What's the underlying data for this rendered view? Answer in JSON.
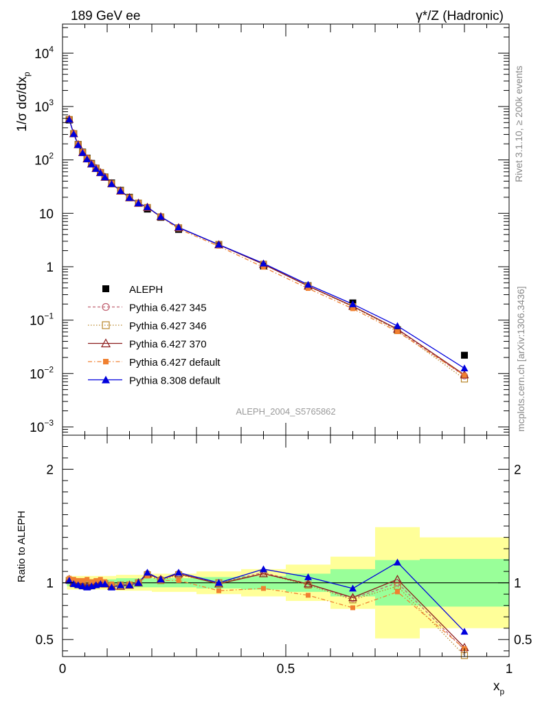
{
  "chart_data": {
    "type": "scatter",
    "title_left": "189 GeV ee",
    "title_right": "γ*/Z (Hadronic)",
    "xlabel": "x",
    "xlabel_sub": "p",
    "ylabel": "1/σ dσ/dx",
    "ylabel_sub": "p",
    "ratio_ylabel": "Ratio to ALEPH",
    "side_text_1": "Rivet 3.1.10, ≥ 200k events",
    "side_text_2": "mcplots.cern.ch [arXiv:1306.3436]",
    "watermark": "ALEPH_2004_S5765862",
    "xlim": [
      0,
      1
    ],
    "ylim": [
      0.0007,
      35000
    ],
    "ratio_ylim": [
      0.35,
      2.3
    ],
    "x_ticks": [
      {
        "v": 0,
        "label": "0"
      },
      {
        "v": 0.5,
        "label": "0.5"
      },
      {
        "v": 1,
        "label": "1"
      }
    ],
    "y_ticks": [
      {
        "v": 0.001,
        "base": "10",
        "exp": "−3"
      },
      {
        "v": 0.01,
        "base": "10",
        "exp": "−2"
      },
      {
        "v": 0.1,
        "base": "10",
        "exp": "−1"
      },
      {
        "v": 1,
        "base": "1",
        "exp": ""
      },
      {
        "v": 10,
        "base": "10",
        "exp": ""
      },
      {
        "v": 100,
        "base": "10",
        "exp": "2"
      },
      {
        "v": 1000,
        "base": "10",
        "exp": "3"
      },
      {
        "v": 10000,
        "base": "10",
        "exp": "4"
      }
    ],
    "ratio_ticks": [
      {
        "v": 0.5,
        "label": "0.5"
      },
      {
        "v": 1,
        "label": "1"
      },
      {
        "v": 2,
        "label": "2"
      }
    ],
    "x": [
      0.015,
      0.025,
      0.035,
      0.045,
      0.055,
      0.065,
      0.075,
      0.085,
      0.095,
      0.11,
      0.13,
      0.15,
      0.17,
      0.19,
      0.22,
      0.26,
      0.35,
      0.45,
      0.55,
      0.65,
      0.75,
      0.9
    ],
    "bin_edges": [
      0.01,
      0.02,
      0.03,
      0.04,
      0.05,
      0.06,
      0.07,
      0.08,
      0.09,
      0.1,
      0.12,
      0.14,
      0.16,
      0.18,
      0.2,
      0.24,
      0.3,
      0.4,
      0.5,
      0.6,
      0.7,
      0.8,
      1.0
    ],
    "data": {
      "name": "ALEPH",
      "values": [
        560,
        310,
        195,
        140,
        108,
        86,
        70,
        58,
        48,
        37,
        27,
        20,
        15.5,
        12,
        8.4,
        5.0,
        2.6,
        1.03,
        0.44,
        0.21,
        0.066,
        0.022
      ]
    },
    "band_green": [
      0.03,
      0.03,
      0.03,
      0.03,
      0.03,
      0.03,
      0.03,
      0.03,
      0.03,
      0.03,
      0.04,
      0.04,
      0.04,
      0.04,
      0.04,
      0.04,
      0.05,
      0.06,
      0.08,
      0.12,
      0.2,
      0.21
    ],
    "band_yellow": [
      0.06,
      0.06,
      0.06,
      0.06,
      0.06,
      0.06,
      0.06,
      0.06,
      0.06,
      0.06,
      0.07,
      0.07,
      0.07,
      0.07,
      0.08,
      0.08,
      0.1,
      0.12,
      0.16,
      0.23,
      0.49,
      0.4
    ],
    "series": [
      {
        "name": "Pythia 6.427 345",
        "color": "#c06070",
        "dash": "4,3",
        "marker": "circle-open",
        "ratio": [
          1.02,
          1.0,
          0.99,
          0.98,
          0.97,
          0.98,
          0.99,
          1.0,
          0.99,
          0.97,
          0.98,
          0.98,
          1.0,
          1.08,
          1.03,
          1.08,
          1.0,
          1.09,
          0.99,
          0.86,
          1.0,
          0.41
        ]
      },
      {
        "name": "Pythia 6.427 346",
        "color": "#b8862a",
        "dash": "1.5,2.5",
        "marker": "square-open",
        "ratio": [
          1.02,
          1.0,
          0.99,
          0.98,
          0.97,
          0.98,
          0.99,
          1.0,
          0.99,
          0.97,
          0.98,
          0.98,
          1.0,
          1.07,
          1.02,
          1.07,
          1.0,
          1.08,
          0.98,
          0.85,
          0.97,
          0.36
        ]
      },
      {
        "name": "Pythia 6.427 370",
        "color": "#8b1a1a",
        "dash": "",
        "marker": "triangle-open",
        "ratio": [
          1.03,
          1.0,
          0.99,
          0.98,
          0.97,
          0.98,
          0.99,
          1.0,
          0.99,
          0.97,
          0.97,
          0.98,
          1.0,
          1.08,
          1.03,
          1.08,
          0.99,
          1.08,
          0.99,
          0.87,
          1.03,
          0.43
        ]
      },
      {
        "name": "Pythia 6.427 default",
        "color": "#f08030",
        "dash": "6,3,1.5,3",
        "marker": "square-filled",
        "ratio": [
          1.04,
          1.03,
          1.02,
          1.02,
          1.03,
          1.01,
          1.02,
          1.03,
          1.01,
          0.99,
          0.98,
          0.99,
          1.0,
          1.06,
          1.02,
          1.02,
          0.93,
          0.95,
          0.89,
          0.78,
          0.92,
          0.42
        ]
      },
      {
        "name": "Pythia 8.308 default",
        "color": "#0000dd",
        "dash": "",
        "marker": "triangle-filled",
        "ratio": [
          1.02,
          0.99,
          0.98,
          0.97,
          0.96,
          0.97,
          0.98,
          0.99,
          0.99,
          0.96,
          0.98,
          0.98,
          1.0,
          1.09,
          1.03,
          1.09,
          1.0,
          1.12,
          1.05,
          0.95,
          1.18,
          0.57
        ]
      }
    ]
  }
}
